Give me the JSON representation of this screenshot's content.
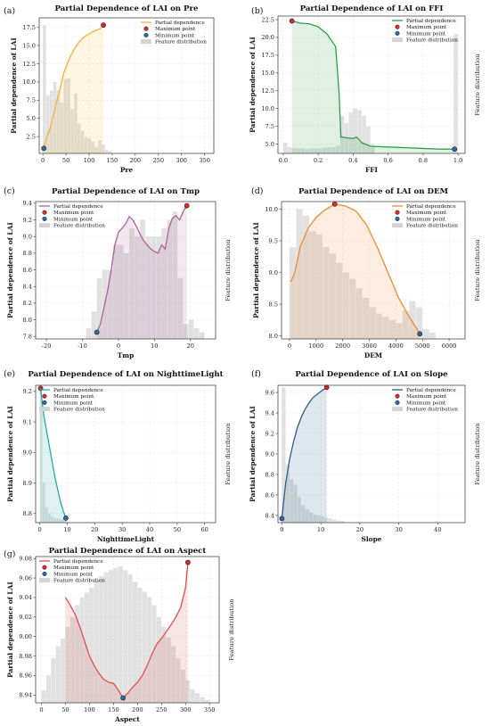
{
  "chart_data": [
    {
      "tag": "(a)",
      "title": "Partial Dependence of LAI on Pre",
      "type": "line",
      "xlabel": "Pre",
      "ylabel": "Partial dependence of LAI",
      "right_label": "",
      "xlim": [
        -8,
        370
      ],
      "ylim": [
        0.2,
        18.8
      ],
      "xticks": [
        0,
        50,
        100,
        150,
        200,
        250,
        300,
        350
      ],
      "yticks": [
        2.5,
        5.0,
        7.5,
        10.0,
        12.5,
        15.0,
        17.5
      ],
      "ytick_labels": [
        "2.5",
        "5.0",
        "7.5",
        "10.0",
        "12.5",
        "15.0",
        "17.5"
      ],
      "color": "#f2b335",
      "line": {
        "x": [
          2,
          8,
          15,
          22,
          30,
          38,
          45,
          52,
          60,
          68,
          76,
          84,
          92,
          100,
          108,
          116,
          124,
          131
        ],
        "y": [
          0.9,
          2.4,
          3.5,
          5.2,
          7.4,
          9.3,
          11.2,
          12.4,
          13.6,
          14.5,
          15.3,
          15.9,
          16.3,
          16.6,
          16.9,
          17.1,
          17.3,
          17.8
        ]
      },
      "max_point": [
        131,
        17.8
      ],
      "min_point": [
        2,
        0.9
      ],
      "hist": {
        "start": 0,
        "width": 7.5,
        "counts": [
          17.8,
          8.2,
          8.8,
          10.0,
          8.9,
          7.2,
          10.4,
          10.5,
          6.3,
          8.4,
          4.3,
          3.3,
          2.4,
          2.3,
          1.8,
          1.1,
          2.0,
          1.4,
          0.7,
          0.5
        ]
      },
      "legend": [
        "Partial dependence",
        "Maximum point",
        "Minimum point",
        "Feature distribution"
      ]
    },
    {
      "tag": "(b)",
      "title": "Partial Dependence of LAI on FFI",
      "type": "line",
      "xlabel": "FFI",
      "ylabel": "Partial dependence of LAI",
      "right_label": "Feature distribution",
      "xlim": [
        -0.03,
        1.04
      ],
      "ylim": [
        3.7,
        23.0
      ],
      "xticks": [
        0.0,
        0.2,
        0.4,
        0.6,
        0.8,
        1.0
      ],
      "xtick_labels": [
        "0.0",
        "0.2",
        "0.4",
        "0.6",
        "0.8",
        "1.0"
      ],
      "yticks": [
        5.0,
        7.5,
        10.0,
        12.5,
        15.0,
        17.5,
        20.0,
        22.5
      ],
      "ytick_labels": [
        "5.0",
        "7.5",
        "10.0",
        "12.5",
        "15.0",
        "17.5",
        "20.0",
        "22.5"
      ],
      "color": "#2ca048",
      "line": {
        "x": [
          0.05,
          0.1,
          0.15,
          0.2,
          0.25,
          0.3,
          0.32,
          0.33,
          0.36,
          0.4,
          0.42,
          0.45,
          0.5,
          0.6,
          0.7,
          0.8,
          0.9,
          0.98
        ],
        "y": [
          22.3,
          22.0,
          21.9,
          21.5,
          20.5,
          18.7,
          12.0,
          6.0,
          5.9,
          5.8,
          6.0,
          5.2,
          4.7,
          4.6,
          4.5,
          4.4,
          4.3,
          4.3
        ]
      },
      "max_point": [
        0.05,
        22.3
      ],
      "min_point": [
        0.98,
        4.3
      ],
      "hist": {
        "start": 0.0,
        "width": 0.025,
        "counts": [
          5.2,
          4.6,
          4.5,
          4.4,
          4.4,
          4.3,
          4.4,
          4.4,
          4.4,
          4.5,
          4.6,
          4.6,
          4.8,
          9.0,
          8.0,
          9.5,
          10.0,
          9.8,
          9.0,
          7.5,
          5.0,
          0,
          0,
          0,
          0,
          0,
          0,
          0,
          0,
          0,
          0,
          0,
          0,
          0,
          0,
          0,
          0,
          0,
          0,
          20.5
        ]
      },
      "legend": [
        "Partial dependence",
        "Maximum point",
        "Minimum point",
        "Feature distribution"
      ]
    },
    {
      "tag": "(c)",
      "title": "Partial Dependence of LAI on Tmp",
      "type": "line",
      "xlabel": "Tmp",
      "ylabel": "Partial dependence of LAI",
      "right_label": "Feature distribution",
      "xlim": [
        -23,
        27
      ],
      "ylim": [
        7.77,
        9.42
      ],
      "xticks": [
        -20,
        -10,
        0,
        10,
        20
      ],
      "xtick_labels": [
        "-20",
        "-10",
        "0",
        "10",
        "20"
      ],
      "yticks": [
        7.8,
        8.0,
        8.2,
        8.4,
        8.6,
        8.8,
        9.0,
        9.2,
        9.4
      ],
      "ytick_labels": [
        "7.8",
        "8.0",
        "8.2",
        "8.4",
        "8.6",
        "8.8",
        "9.0",
        "9.2",
        "9.4"
      ],
      "color": "#b0609a",
      "line": {
        "x": [
          -6,
          -5,
          -4,
          -3,
          -2,
          -1,
          0,
          1,
          2,
          3,
          4,
          5,
          6,
          7,
          8,
          9,
          10,
          11,
          12,
          13,
          14,
          15,
          16,
          17,
          18,
          19
        ],
        "y": [
          7.85,
          7.95,
          8.15,
          8.35,
          8.6,
          8.9,
          9.05,
          9.1,
          9.15,
          9.24,
          9.2,
          9.12,
          9.03,
          8.95,
          8.9,
          8.85,
          8.82,
          8.8,
          8.9,
          8.85,
          9.1,
          9.22,
          9.25,
          9.2,
          9.3,
          9.37
        ]
      },
      "max_point": [
        19,
        9.37
      ],
      "min_point": [
        -6,
        7.85
      ],
      "hist": {
        "start": -9,
        "width": 1.5,
        "counts": [
          7.9,
          8.1,
          8.5,
          8.6,
          8.6,
          8.9,
          8.9,
          8.8,
          9.1,
          9.0,
          9.2,
          9.0,
          9.0,
          9.0,
          9.1,
          9.2,
          9.3,
          8.5,
          7.95,
          8.0,
          7.9,
          7.85
        ]
      },
      "legend": [
        "Partial dependence",
        "Maximum point",
        "Minimum point",
        "Feature distribution"
      ]
    },
    {
      "tag": "(d)",
      "title": "Partial Dependence of LAI on DEM",
      "type": "line",
      "xlabel": "DEM",
      "ylabel": "Partial dependence of LAI",
      "right_label": "Feature distribution",
      "xlim": [
        -300,
        6600
      ],
      "ylim": [
        7.95,
        10.12
      ],
      "xticks": [
        0,
        1000,
        2000,
        3000,
        4000,
        5000,
        6000
      ],
      "xtick_labels": [
        "0",
        "1000",
        "2000",
        "3000",
        "4000",
        "5000",
        "6000"
      ],
      "yticks": [
        8.0,
        8.5,
        9.0,
        9.5,
        10.0
      ],
      "ytick_labels": [
        "8.0",
        "8.5",
        "9.0",
        "9.5",
        "10.0"
      ],
      "color": "#f08a30",
      "line": {
        "x": [
          50,
          200,
          400,
          700,
          1000,
          1300,
          1700,
          2100,
          2500,
          2900,
          3300,
          3700,
          4100,
          4500,
          4800,
          4900
        ],
        "y": [
          8.85,
          9.0,
          9.4,
          9.7,
          9.87,
          9.98,
          10.08,
          10.05,
          9.97,
          9.75,
          9.4,
          9.0,
          8.6,
          8.3,
          8.1,
          8.03
        ]
      },
      "max_point": [
        1700,
        10.08
      ],
      "min_point": [
        4900,
        8.03
      ],
      "hist": {
        "start": 0,
        "width": 250,
        "counts": [
          9.4,
          10.0,
          9.9,
          9.65,
          9.6,
          9.4,
          9.3,
          9.15,
          9.0,
          8.9,
          8.75,
          8.6,
          8.45,
          8.35,
          8.3,
          8.25,
          8.2,
          8.4,
          8.55,
          8.45,
          8.1,
          8.05
        ]
      },
      "legend": [
        "Partial dependence",
        "Maximum point",
        "Minimum point",
        "Feature distribution"
      ]
    },
    {
      "tag": "(e)",
      "title": "Partial Dependence of LAI on NighttimeLight",
      "type": "line",
      "xlabel": "NighttimeLight",
      "ylabel": "Partial dependence of LAI",
      "right_label": "Feature distribution",
      "xlim": [
        -1.5,
        64
      ],
      "ylim": [
        8.77,
        9.22
      ],
      "xticks": [
        0,
        10,
        20,
        30,
        40,
        50,
        60
      ],
      "xtick_labels": [
        "0",
        "10",
        "20",
        "30",
        "40",
        "50",
        "60"
      ],
      "yticks": [
        8.8,
        8.9,
        9.0,
        9.1,
        9.2
      ],
      "ytick_labels": [
        "8.8",
        "8.9",
        "9.0",
        "9.1",
        "9.2"
      ],
      "color": "#2aa8a8",
      "line": {
        "x": [
          0.3,
          0.8,
          1.5,
          2.5,
          3.5,
          4.5,
          5.5,
          6.5,
          7.5,
          8.5,
          9.5
        ],
        "y": [
          9.21,
          9.17,
          9.12,
          9.07,
          9.02,
          8.97,
          8.92,
          8.88,
          8.84,
          8.81,
          8.785
        ]
      },
      "max_point": [
        0.3,
        9.21
      ],
      "min_point": [
        9.5,
        8.785
      ],
      "hist": {
        "start": 0,
        "width": 1,
        "counts": [
          9.2,
          8.9,
          8.82,
          8.8,
          8.79,
          8.785,
          8.783,
          8.782,
          8.781,
          8.78
        ]
      },
      "legend": [
        "Partial dependence",
        "Maximum point",
        "Minimum point",
        "Feature distribution"
      ]
    },
    {
      "tag": "(f)",
      "title": "Partial Dependence of LAI on Slope",
      "type": "line",
      "xlabel": "Slope",
      "ylabel": "Partial dependence of LAI",
      "right_label": "Feature distribution",
      "xlim": [
        -1,
        47
      ],
      "ylim": [
        8.33,
        9.67
      ],
      "xticks": [
        0,
        10,
        20,
        30,
        40
      ],
      "xtick_labels": [
        "0",
        "10",
        "20",
        "30",
        "40"
      ],
      "yticks": [
        8.4,
        8.6,
        8.8,
        9.0,
        9.2,
        9.4,
        9.6
      ],
      "ytick_labels": [
        "8.4",
        "8.6",
        "8.8",
        "9.0",
        "9.2",
        "9.4",
        "9.6"
      ],
      "color": "#2a5f8a",
      "line": {
        "x": [
          0,
          0.5,
          1,
          2,
          3,
          4,
          5,
          6,
          7,
          8,
          9,
          10,
          11.5
        ],
        "y": [
          8.37,
          8.55,
          8.72,
          8.95,
          9.12,
          9.26,
          9.36,
          9.44,
          9.5,
          9.55,
          9.58,
          9.61,
          9.65
        ]
      },
      "max_point": [
        11.5,
        9.65
      ],
      "min_point": [
        0,
        8.37
      ],
      "hist": {
        "start": 0,
        "width": 1,
        "counts": [
          9.65,
          8.9,
          8.75,
          8.7,
          8.58,
          8.5,
          8.46,
          8.43,
          8.41,
          8.4,
          8.39,
          8.38,
          8.37,
          8.36,
          8.35,
          8.35
        ]
      },
      "legend": [
        "Partial dependence",
        "Maximum point",
        "Minimum point",
        "Feature distribution"
      ]
    },
    {
      "tag": "(g)",
      "title": "Partial Dependence of LAI on Aspect",
      "type": "line",
      "xlabel": "Aspect",
      "ylabel": "Partial dependence of LAI",
      "right_label": "Feature distribution",
      "xlim": [
        -12,
        370
      ],
      "ylim": [
        8.932,
        9.082
      ],
      "xticks": [
        0,
        50,
        100,
        150,
        200,
        250,
        300,
        350
      ],
      "xtick_labels": [
        "0",
        "50",
        "100",
        "150",
        "200",
        "250",
        "300",
        "350"
      ],
      "yticks": [
        8.94,
        8.96,
        8.98,
        9.0,
        9.02,
        9.04,
        9.06,
        9.08
      ],
      "ytick_labels": [
        "8.94",
        "8.96",
        "8.98",
        "9.00",
        "9.02",
        "9.04",
        "9.06",
        "9.08"
      ],
      "color": "#e05050",
      "line": {
        "x": [
          50,
          60,
          70,
          80,
          90,
          100,
          110,
          120,
          130,
          140,
          150,
          160,
          170,
          180,
          190,
          200,
          210,
          220,
          230,
          240,
          250,
          260,
          270,
          280,
          290,
          300,
          305
        ],
        "y": [
          9.04,
          9.032,
          9.023,
          9.01,
          8.995,
          8.98,
          8.97,
          8.962,
          8.956,
          8.953,
          8.952,
          8.945,
          8.937,
          8.942,
          8.948,
          8.953,
          8.96,
          8.97,
          8.982,
          8.992,
          8.998,
          9.005,
          9.012,
          9.02,
          9.03,
          9.05,
          9.076
        ]
      },
      "max_point": [
        305,
        9.076
      ],
      "min_point": [
        170,
        8.937
      ],
      "hist": {
        "start": 0,
        "width": 10,
        "counts": [
          8.945,
          8.96,
          8.978,
          8.99,
          8.998,
          9.01,
          9.02,
          9.032,
          9.04,
          9.045,
          9.05,
          9.058,
          9.062,
          9.066,
          9.068,
          9.07,
          9.072,
          9.068,
          9.064,
          9.056,
          9.05,
          9.046,
          9.04,
          9.032,
          9.02,
          9.01,
          8.999,
          8.99,
          8.978,
          8.966,
          8.955,
          8.946,
          8.942,
          8.938,
          8.935
        ]
      },
      "legend": [
        "Partial dependence",
        "Maximum point",
        "Minimum point",
        "Feature distribution"
      ]
    }
  ]
}
